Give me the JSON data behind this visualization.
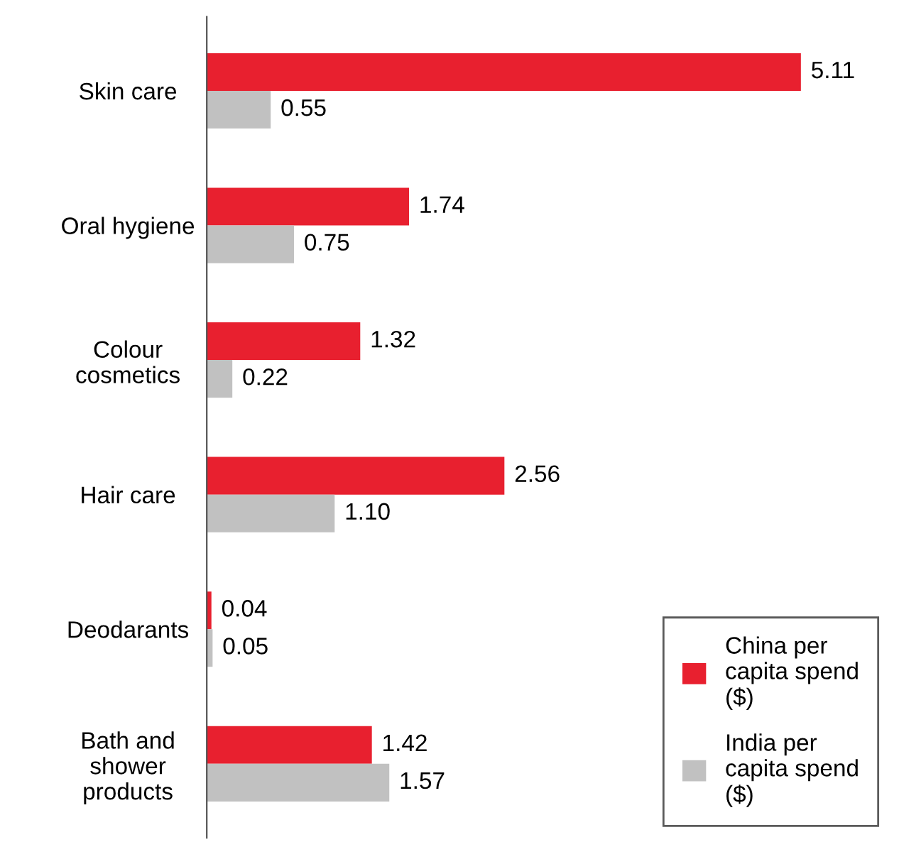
{
  "chart_data": {
    "type": "bar",
    "orientation": "horizontal",
    "categories": [
      "Skin care",
      "Oral hygiene",
      "Colour\ncosmetics",
      "Hair care",
      "Deodarants",
      "Bath and\nshower\nproducts"
    ],
    "series": [
      {
        "name": "China per\ncapita spend\n($)",
        "color": "#e8202f",
        "values": [
          5.11,
          1.74,
          1.32,
          2.56,
          0.04,
          1.42
        ],
        "value_labels": [
          "5.11",
          "1.74",
          "1.32",
          "2.56",
          "0.04",
          "1.42"
        ]
      },
      {
        "name": "India per\ncapita spend\n($)",
        "color": "#c1c1c1",
        "values": [
          0.55,
          0.75,
          0.22,
          1.1,
          0.05,
          1.57
        ],
        "value_labels": [
          "0.55",
          "0.75",
          "0.22",
          "1.10",
          "0.05",
          "1.57"
        ]
      }
    ],
    "legend": "bottom right",
    "grid": false,
    "tick_labels": "y"
  }
}
